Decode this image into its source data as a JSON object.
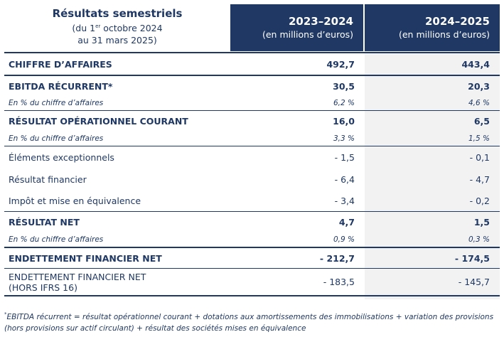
{
  "header": {
    "title": "Résultats semestriels",
    "period_pre": "(du 1",
    "period_sup": "er",
    "period_post": " octobre 2024",
    "period_line2": "au 31 mars 2025)",
    "col1_year": "2023–2024",
    "col1_unit": "(en millions d’euros)",
    "col2_year": "2024–2025",
    "col2_unit": "(en millions d’euros)"
  },
  "rows": [
    {
      "label": "CHIFFRE D’AFFAIRES",
      "v1": "492,7",
      "v2": "443,4"
    },
    {
      "label": "EBITDA RÉCURRENT*",
      "v1": "30,5",
      "v2": "20,3"
    },
    {
      "label": "En % du chiffre d’affaires",
      "v1": "6,2 %",
      "v2": "4,6 %"
    },
    {
      "label": "RÉSULTAT OPÉRATIONNEL COURANT",
      "v1": "16,0",
      "v2": "6,5"
    },
    {
      "label": "En % du chiffre d’affaires",
      "v1": "3,3 %",
      "v2": "1,5 %"
    },
    {
      "label": "Éléments exceptionnels",
      "v1": "- 1,5",
      "v2": "- 0,1"
    },
    {
      "label": "Résultat financier",
      "v1": "- 6,4",
      "v2": "- 4,7"
    },
    {
      "label": "Impôt et mise en équivalence",
      "v1": "- 3,4",
      "v2": "- 0,2"
    },
    {
      "label": "RÉSULTAT NET",
      "v1": "4,7",
      "v2": "1,5"
    },
    {
      "label": "En % du chiffre d’affaires",
      "v1": "0,9 %",
      "v2": "0,3 %"
    },
    {
      "label": "ENDETTEMENT FINANCIER NET",
      "v1": "- 212,7",
      "v2": "- 174,5"
    },
    {
      "label_line1": "ENDETTEMENT FINANCIER NET",
      "label_line2": "(HORS IFRS 16)",
      "v1": "- 183,5",
      "v2": "- 145,7"
    }
  ],
  "footnote": {
    "line1": "EBITDA récurrent = résultat opérationnel courant + dotations aux amortissements des immobilisations + variation des provisions",
    "line2": "(hors provisions sur actif circulant) + résultat des sociétés mises en équivalence"
  },
  "colors": {
    "header_bg": "#1f3864",
    "text": "#1f3864",
    "shade": "#f2f2f2"
  }
}
